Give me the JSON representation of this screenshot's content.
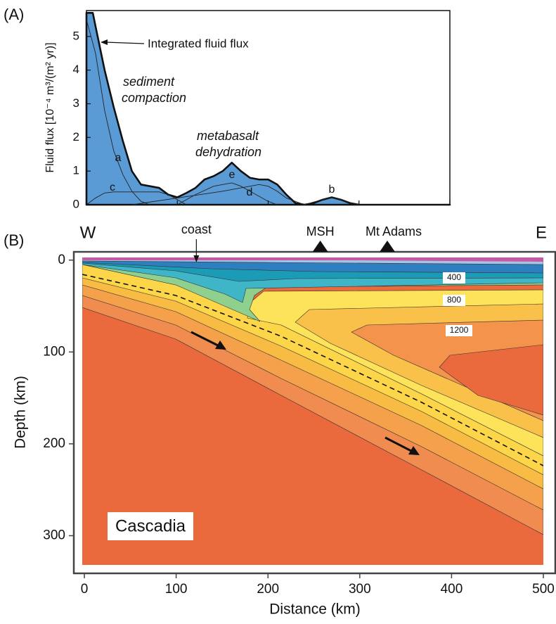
{
  "chart_data": [
    {
      "type": "area",
      "panel_label": "(A)",
      "ylabel": "Fluid flux [10⁻⁴ m³/(m² yr)]",
      "xlim": [
        0,
        400
      ],
      "xticks": [
        0,
        100,
        200,
        300,
        400
      ],
      "ylim": [
        0,
        5.77
      ],
      "yticks": [
        0,
        1,
        2,
        3,
        4,
        5
      ],
      "x": [
        0,
        7,
        10,
        20,
        30,
        40,
        50,
        60,
        70,
        80,
        90,
        100,
        110,
        120,
        130,
        140,
        150,
        160,
        170,
        180,
        190,
        200,
        210,
        220,
        230,
        240,
        250,
        260,
        270,
        280,
        290,
        300,
        400
      ],
      "series": [
        {
          "name": "Integrated fluid flux",
          "color": "#5b9bd5",
          "values": [
            5.7,
            5.7,
            5.3,
            4.0,
            2.9,
            1.9,
            1.0,
            0.6,
            0.55,
            0.5,
            0.3,
            0.22,
            0.35,
            0.5,
            0.75,
            0.85,
            1.0,
            1.25,
            1.0,
            0.8,
            0.75,
            0.75,
            0.6,
            0.3,
            0.05,
            0,
            0.05,
            0.15,
            0.22,
            0.15,
            0.05,
            0,
            0
          ]
        }
      ],
      "components": [
        {
          "name": "a",
          "x": [
            0,
            10,
            20,
            30,
            40,
            50,
            60,
            70
          ],
          "values": [
            5.5,
            4.5,
            2.8,
            1.6,
            0.9,
            0.4,
            0.1,
            0
          ]
        },
        {
          "name": "b",
          "x": [
            240,
            250,
            260,
            270,
            280,
            290,
            300
          ],
          "values": [
            0,
            0.08,
            0.15,
            0.22,
            0.15,
            0.05,
            0
          ]
        },
        {
          "name": "c",
          "x": [
            0,
            10,
            20,
            30,
            80,
            90,
            100,
            110
          ],
          "values": [
            0,
            0.2,
            0.35,
            0.38,
            0.38,
            0.3,
            0.15,
            0
          ]
        },
        {
          "name": "d",
          "x": [
            50,
            100,
            150,
            170,
            190,
            200,
            210,
            220,
            240
          ],
          "values": [
            0,
            0.2,
            0.4,
            0.5,
            0.6,
            0.55,
            0.4,
            0.2,
            0
          ]
        },
        {
          "name": "e",
          "x": [
            100,
            120,
            140,
            150,
            160,
            170,
            180,
            190,
            200,
            210
          ],
          "values": [
            0,
            0.3,
            0.55,
            0.6,
            0.65,
            0.55,
            0.4,
            0.25,
            0.1,
            0
          ]
        }
      ],
      "annotations": [
        [
          "sediment",
          "compaction"
        ],
        [
          "metabasalt",
          "dehydration"
        ]
      ]
    },
    {
      "type": "section",
      "panel_label": "(B)",
      "title": "Cascadia",
      "xlabel": "Distance (km)",
      "ylabel": "Depth (km)",
      "xlim": [
        -11.5,
        513
      ],
      "xticks": [
        0,
        100,
        200,
        300,
        400,
        500
      ],
      "ylim": [
        -9,
        341
      ],
      "yticks": [
        0,
        100,
        200,
        300
      ],
      "ends": [
        "W",
        "E"
      ],
      "markers": [
        {
          "label": "coast",
          "x": 122
        },
        {
          "label": "MSH",
          "x": 257
        },
        {
          "label": "Mt Adams",
          "x": 330
        }
      ],
      "isotherms": [
        400,
        800,
        1200
      ]
    }
  ]
}
